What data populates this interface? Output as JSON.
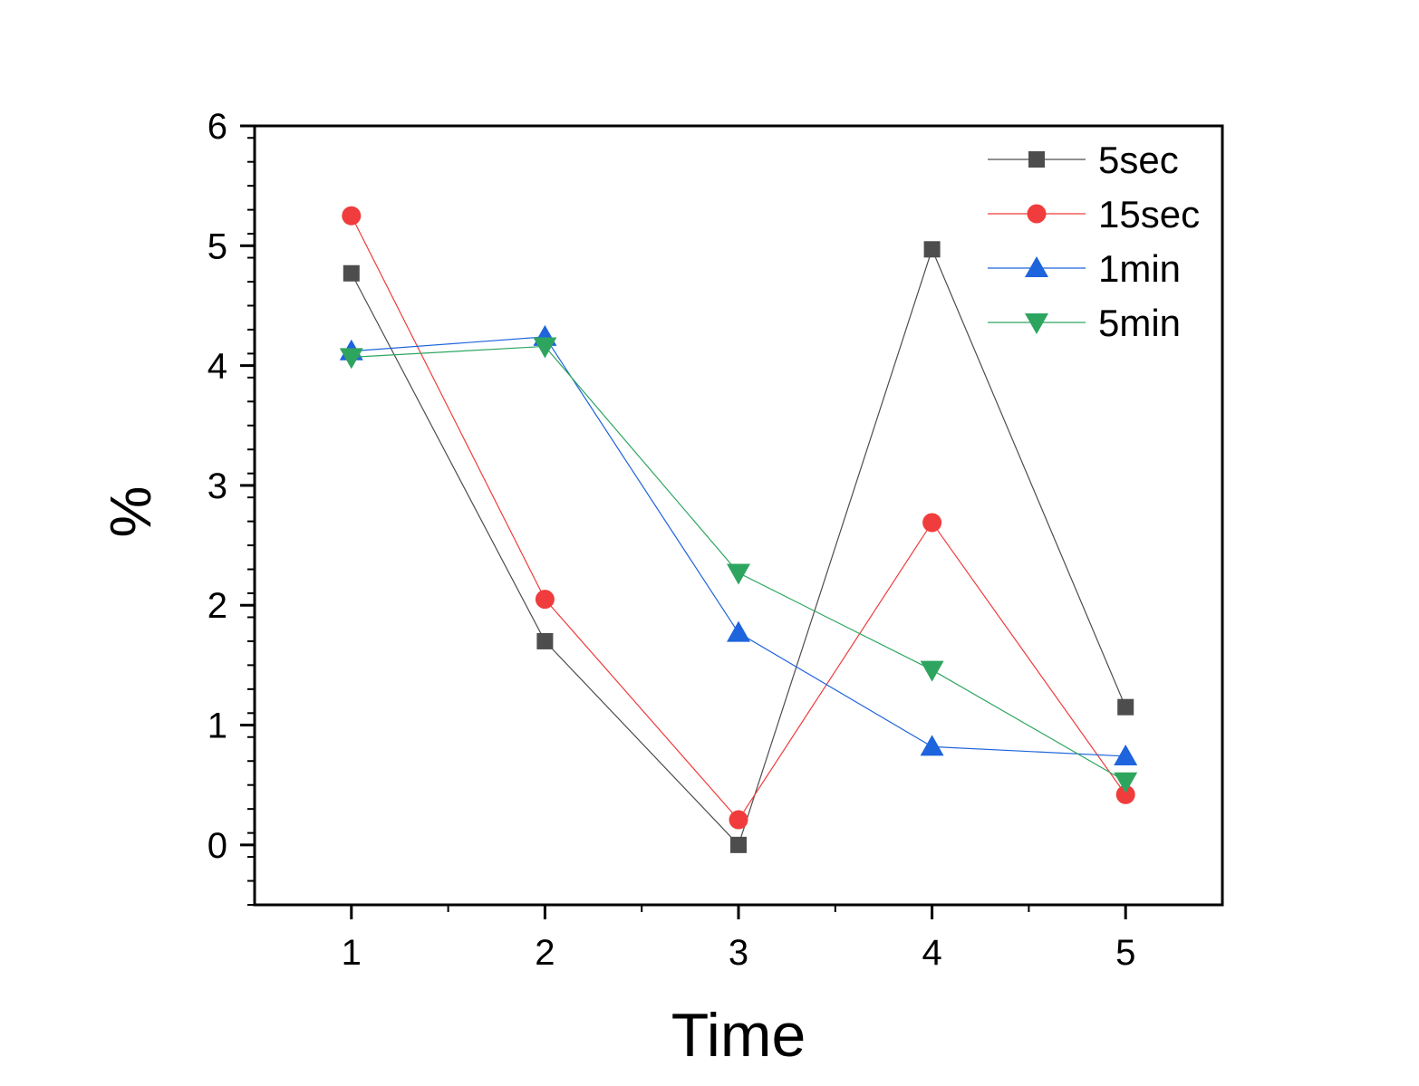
{
  "chart_data": {
    "type": "line",
    "title": "",
    "xlabel": "Time",
    "ylabel": "%",
    "x": [
      1,
      2,
      3,
      4,
      5
    ],
    "xlim": [
      0.5,
      5.5
    ],
    "ylim": [
      -0.5,
      6
    ],
    "x_ticks": [
      1,
      2,
      3,
      4,
      5
    ],
    "y_ticks": [
      0,
      1,
      2,
      3,
      4,
      5,
      6
    ],
    "grid": false,
    "legend_position": "top-right",
    "series": [
      {
        "name": "5sec",
        "color": "#4d4d4d",
        "marker": "square",
        "values": [
          4.77,
          1.7,
          0.0,
          4.97,
          1.15
        ]
      },
      {
        "name": "15sec",
        "color": "#f03c3c",
        "marker": "circle",
        "values": [
          5.25,
          2.05,
          0.21,
          2.69,
          0.42
        ]
      },
      {
        "name": "1min",
        "color": "#1e64dc",
        "marker": "triangle-up",
        "values": [
          4.12,
          4.24,
          1.77,
          0.82,
          0.74
        ]
      },
      {
        "name": "5min",
        "color": "#2ea55f",
        "marker": "triangle-down",
        "values": [
          4.07,
          4.16,
          2.27,
          1.46,
          0.53
        ]
      }
    ]
  }
}
